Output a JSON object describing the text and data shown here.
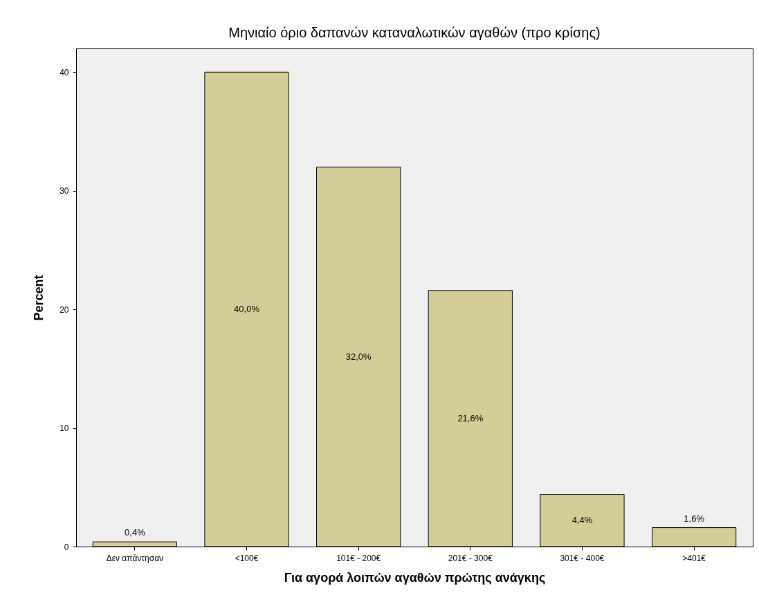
{
  "chart_data": {
    "type": "bar",
    "title": "Μηνιαίο όριο δαπανών καταναλωτικών αγαθών (προ κρίσης)",
    "xlabel": "Για αγορά λοιπών αγαθών πρώτης ανάγκης",
    "ylabel": "Percent",
    "categories": [
      "Δεν απάντησαν",
      "<100€",
      "101€ - 200€",
      "201€ - 300€",
      "301€ - 400€",
      ">401€"
    ],
    "values": [
      0.4,
      40.0,
      32.0,
      21.6,
      4.4,
      1.6
    ],
    "value_labels": [
      "0,4%",
      "40,0%",
      "32,0%",
      "21,6%",
      "4,4%",
      "1,6%"
    ],
    "color": "#d3ce97",
    "ylim": [
      0,
      42
    ],
    "yticks": [
      0,
      10,
      20,
      30,
      40
    ],
    "grid": false
  }
}
